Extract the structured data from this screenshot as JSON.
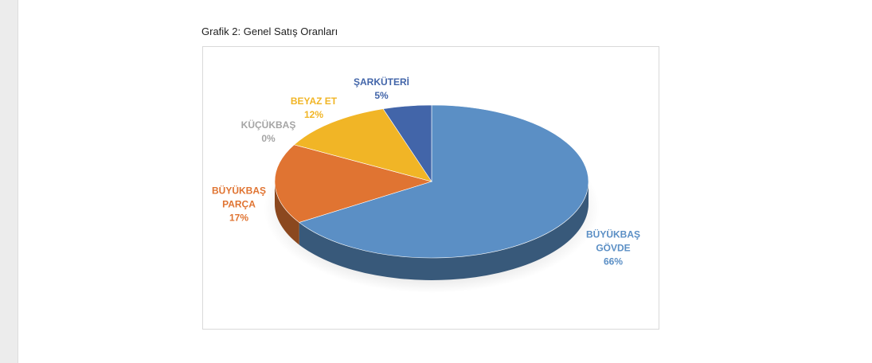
{
  "chart_data": {
    "type": "pie",
    "title": "Grafik 2: Genel Satış Oranları",
    "categories": [
      "BÜYÜKBAŞ GÖVDE",
      "BÜYÜKBAŞ PARÇA",
      "KÜÇÜKBAŞ",
      "BEYAZ ET",
      "ŞARKÜTERİ"
    ],
    "values": [
      66,
      17,
      0,
      12,
      5
    ],
    "value_labels": [
      "66%",
      "17%",
      "0%",
      "12%",
      "5%"
    ],
    "colors": [
      "#5b8fc5",
      "#e07432",
      "#a5a5a5",
      "#f1b526",
      "#4265a9"
    ]
  }
}
